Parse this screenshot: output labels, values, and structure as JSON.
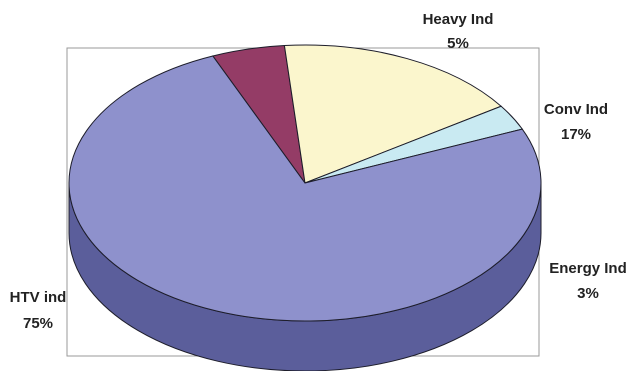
{
  "chart_data": {
    "type": "pie",
    "title": "",
    "style": "3d",
    "slices": [
      {
        "name": "HTV ind",
        "value": 75,
        "label": "75%",
        "color": "#8e91cc",
        "side_color": "#5b5e9b"
      },
      {
        "name": "Heavy Ind",
        "value": 5,
        "label": "5%",
        "color": "#943c66",
        "side_color": "#6b2a4a"
      },
      {
        "name": "Conv Ind",
        "value": 17,
        "label": "17%",
        "color": "#fbf6cd",
        "side_color": "#c9c39a"
      },
      {
        "name": "Energy Ind",
        "value": 3,
        "label": "3%",
        "color": "#c9eaf2",
        "side_color": "#7fa19a"
      }
    ],
    "plot_area_border": true,
    "legend": "none"
  }
}
